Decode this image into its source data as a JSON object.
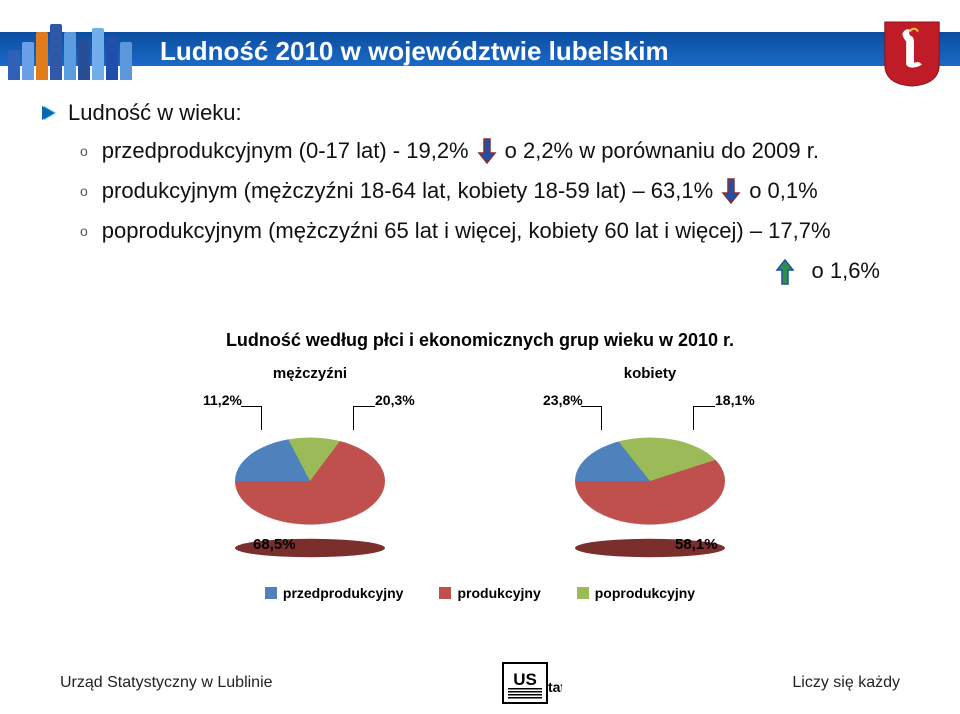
{
  "colors": {
    "header_band": "#1a69c7",
    "title_text": "#ffffff",
    "body_text": "#111111",
    "arrow_down_fill": "#1f4fa8",
    "arrow_down_stroke": "#8b2e2e",
    "arrow_up_fill": "#2e9048",
    "arrow_up_stroke": "#1f4fa8",
    "series_pre": "#4f81bd",
    "series_prod": "#c0504d",
    "series_post": "#9bbb59",
    "pie_base_shadow": "#7a2f2d",
    "crest_bg": "#c01c28",
    "crest_fg": "#ffffff"
  },
  "header": {
    "title": "Ludność 2010 w województwie lubelskim",
    "tower_heights": [
      30,
      38,
      48,
      56,
      48,
      40,
      52,
      44,
      38
    ],
    "tower_colors": [
      "#3060b8",
      "#6aa0e8",
      "#e07c1a",
      "#2f58a8",
      "#5b9be0",
      "#274f98",
      "#72aeec",
      "#1f4fa8",
      "#5c98dc"
    ]
  },
  "content": {
    "heading": "Ludność w wieku:",
    "lines": [
      {
        "prefix": "o",
        "text_a": "przedprodukcyjnym (0-17 lat) - 19,2%",
        "direction": "down",
        "text_b": "o 2,2% w porównaniu do 2009 r."
      },
      {
        "prefix": "o",
        "text_a": "produkcyjnym (mężczyźni 18-64 lat, kobiety 18-59 lat) – 63,1%",
        "direction": "down",
        "text_b": "o 0,1%"
      },
      {
        "prefix": "o",
        "text_a": "poprodukcyjnym (mężczyźni 65 lat i więcej, kobiety 60 lat i więcej) – 17,7%",
        "direction": null,
        "text_b": ""
      }
    ],
    "final_change": {
      "direction": "up",
      "text": "o 1,6%"
    }
  },
  "chart": {
    "section_title": "Ludność według płci i ekonomicznych grup wieku w 2010 r.",
    "type": "pie-pair-3d",
    "pies": [
      {
        "heading": "mężczyźni",
        "slices": [
          {
            "series": "pre",
            "value": 20.3,
            "label": "20,3%"
          },
          {
            "series": "post",
            "value": 11.2,
            "label": "11,2%"
          },
          {
            "series": "prod",
            "value": 68.5,
            "label": "68,5%"
          }
        ]
      },
      {
        "heading": "kobiety",
        "slices": [
          {
            "series": "pre",
            "value": 18.1,
            "label": "18,1%"
          },
          {
            "series": "post",
            "value": 23.8,
            "label": "23,8%"
          },
          {
            "series": "prod",
            "value": 58.1,
            "label": "58,1%"
          }
        ]
      }
    ],
    "legend": [
      {
        "series": "pre",
        "label": "przedprodukcyjny"
      },
      {
        "series": "prod",
        "label": "produkcyjny"
      },
      {
        "series": "post",
        "label": "poprodukcyjny"
      }
    ]
  },
  "footer": {
    "left": "Urząd Statystyczny w Lublinie",
    "right": "Liczy się każdy",
    "logo_text_top": "US",
    "logo_text_side": "tat"
  }
}
